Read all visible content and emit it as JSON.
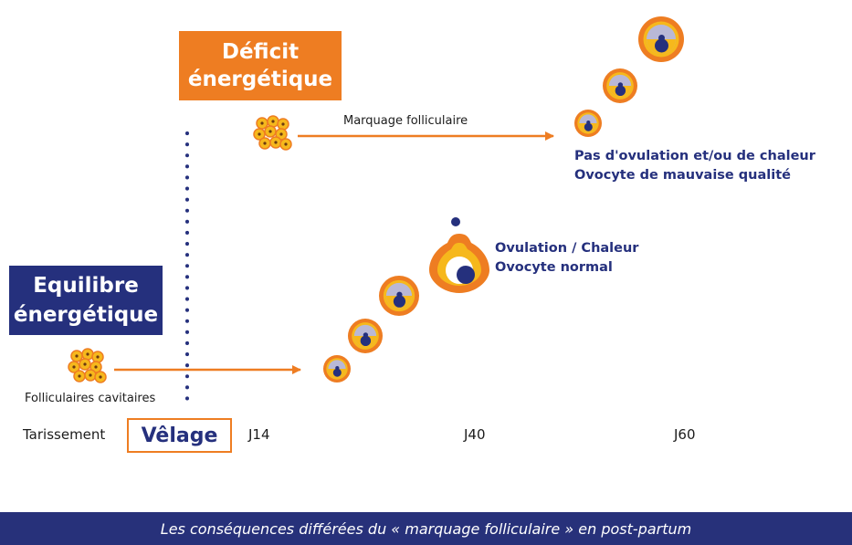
{
  "deficit": {
    "line1": "Déficit",
    "line2": "énergétique"
  },
  "equilibre": {
    "line1": "Equilibre",
    "line2": "énergétique"
  },
  "labels": {
    "marquage": "Marquage folliculaire",
    "folliculaires": "Folliculaires cavitaires",
    "pas_ovulation_1": "Pas d'ovulation et/ou de chaleur",
    "pas_ovulation_2": "Ovocyte de mauvaise qualité",
    "ovulation_1": "Ovulation / Chaleur",
    "ovulation_2": "Ovocyte normal"
  },
  "timeline": {
    "tarissement": "Tarissement",
    "velage": "Vêlage",
    "j14": "J14",
    "j40": "J40",
    "j60": "J60"
  },
  "footer": {
    "caption": "Les conséquences différées du « marquage folliculaire » en post-partum"
  },
  "colors": {
    "orange": "#ee7d22",
    "navy": "#25307d",
    "yellow": "#f6b81c",
    "lavender": "#b9b8d6"
  }
}
